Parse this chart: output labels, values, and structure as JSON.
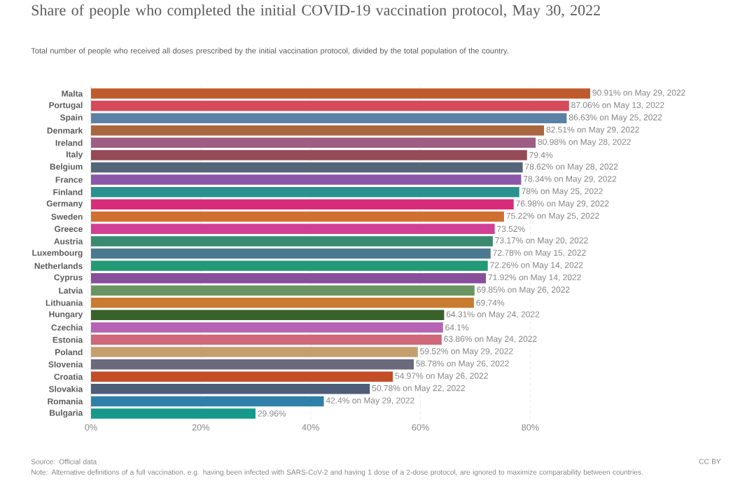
{
  "chart_data": {
    "type": "bar",
    "orientation": "horizontal",
    "title": "Share of people who completed the initial COVID-19 vaccination protocol, May 30, 2022",
    "subtitle": "Total number of people who received all doses prescribed by the initial vaccination protocol, divided by the total population of the country.",
    "categories": [
      "Malta",
      "Portugal",
      "Spain",
      "Denmark",
      "Ireland",
      "Italy",
      "Belgium",
      "France",
      "Finland",
      "Germany",
      "Sweden",
      "Greece",
      "Austria",
      "Luxembourg",
      "Netherlands",
      "Cyprus",
      "Latvia",
      "Lithuania",
      "Hungary",
      "Czechia",
      "Estonia",
      "Poland",
      "Slovenia",
      "Croatia",
      "Slovakia",
      "Romania",
      "Bulgaria"
    ],
    "values": [
      90.91,
      87.06,
      86.63,
      82.51,
      80.98,
      79.4,
      78.62,
      78.34,
      78,
      76.98,
      75.22,
      73.52,
      73.17,
      72.78,
      72.26,
      71.92,
      69.85,
      69.74,
      64.31,
      64.1,
      63.86,
      59.52,
      58.78,
      54.97,
      50.78,
      42.4,
      29.96
    ],
    "value_labels": [
      "90.91% on May 29, 2022",
      "87.06% on May 13, 2022",
      "86.63% on May 25, 2022",
      "82.51% on May 29, 2022",
      "80.98% on May 28, 2022",
      "79.4%",
      "78.62% on May 28, 2022",
      "78.34% on May 29, 2022",
      "78% on May 25, 2022",
      "76.98% on May 29, 2022",
      "75.22% on May 25, 2022",
      "73.52%",
      "73.17% on May 20, 2022",
      "72.78% on May 15, 2022",
      "72.26% on May 14, 2022",
      "71.92% on May 14, 2022",
      "69.85% on May 26, 2022",
      "69.74%",
      "64.31% on May 24, 2022",
      "64.1%",
      "63.86% on May 24, 2022",
      "59.52% on May 29, 2022",
      "58.78% on May 26, 2022",
      "54.97% on May 26, 2022",
      "50.78% on May 22, 2022",
      "42.4% on May 29, 2022",
      "29.96%"
    ],
    "colors": [
      "#be5a2b",
      "#d64b5b",
      "#5b82a6",
      "#a8673f",
      "#9c5e82",
      "#954a57",
      "#556478",
      "#8a57a8",
      "#2b918f",
      "#d82c7a",
      "#cf6f30",
      "#d33f94",
      "#3a8a70",
      "#4b7990",
      "#239a75",
      "#884e9a",
      "#6b9560",
      "#c97b2f",
      "#38622a",
      "#b563b3",
      "#cf6679",
      "#c59e70",
      "#6a6a7c",
      "#c24d27",
      "#4e5d78",
      "#2e80a8",
      "#16998a"
    ],
    "xlim": [
      0,
      90.91
    ],
    "xticks": [
      {
        "value": 0,
        "label": "0%"
      },
      {
        "value": 20,
        "label": "20%"
      },
      {
        "value": 40,
        "label": "40%"
      },
      {
        "value": 60,
        "label": "60%"
      },
      {
        "value": 80,
        "label": "80%"
      }
    ],
    "grid": "x",
    "annotations": [
      "Source: Official data",
      "CC BY",
      "Note: Alternative definitions of a full vaccination, e.g. having been infected with SARS-CoV-2 and having 1 dose of a 2-dose protocol, are ignored to maximize comparability between countries."
    ]
  }
}
